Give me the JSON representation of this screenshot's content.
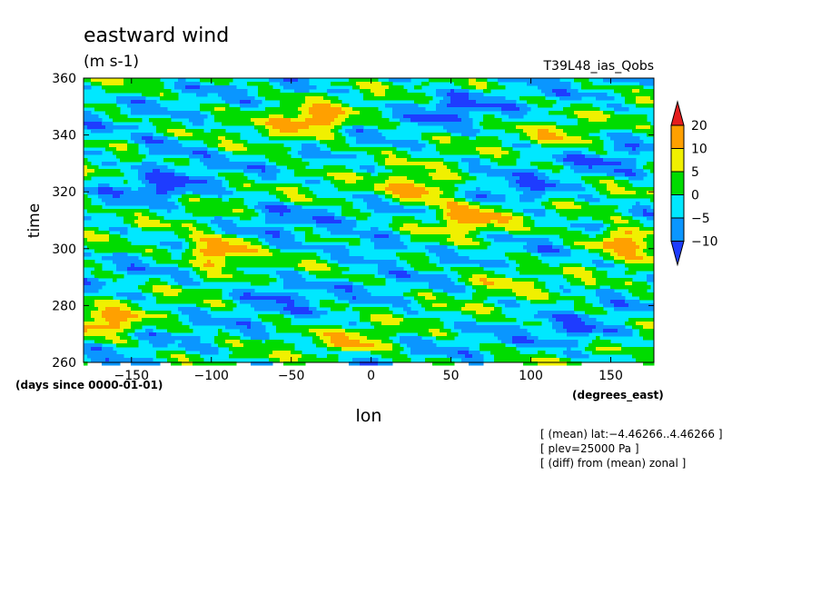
{
  "chart_data": {
    "type": "heatmap",
    "title": "eastward wind",
    "subtitle": "(m s-1)",
    "run_label": "T39L48_ias_Qobs",
    "xlabel": "lon",
    "x_units": "(degrees_east)",
    "ylabel": "time",
    "y_units": "(days since 0000-01-01)",
    "xlim": [
      -180,
      177
    ],
    "ylim": [
      260,
      360
    ],
    "x_ticks": [
      "−150",
      "−100",
      "−50",
      "0",
      "50",
      "100",
      "150"
    ],
    "y_ticks": [
      "260",
      "280",
      "300",
      "320",
      "340",
      "360"
    ],
    "colorbar": {
      "labels": [
        "20",
        "10",
        "5",
        "0",
        "−5",
        "−10"
      ],
      "levels": [
        -10,
        -5,
        0,
        5,
        10,
        20
      ],
      "colors": [
        "#1e3cff",
        "#0a96ff",
        "#00e8ff",
        "#00dc00",
        "#f0f000",
        "#ffa000",
        "#e61e1e"
      ]
    },
    "notes": [
      "[ (mean) lat:−4.46266..4.46266 ]",
      "[ plev=25000 Pa ]",
      "[ (diff) from (mean) zonal ]"
    ],
    "anomalies": [
      {
        "lon": -35,
        "time": 345,
        "value": 16
      },
      {
        "lon": -95,
        "time": 299,
        "value": 20
      },
      {
        "lon": 30,
        "time": 321,
        "value": 17
      },
      {
        "lon": 60,
        "time": 311,
        "value": 15
      },
      {
        "lon": 158,
        "time": 303,
        "value": 18
      },
      {
        "lon": -165,
        "time": 274,
        "value": 14
      },
      {
        "lon": -10,
        "time": 267,
        "value": 8
      },
      {
        "lon": -60,
        "time": 337,
        "value": 6
      },
      {
        "lon": 120,
        "time": 340,
        "value": 6
      },
      {
        "lon": 80,
        "time": 290,
        "value": 7
      },
      {
        "lon": -130,
        "time": 322,
        "value": -9
      },
      {
        "lon": -130,
        "time": 335,
        "value": -8
      },
      {
        "lon": 0,
        "time": 300,
        "value": -9
      },
      {
        "lon": 100,
        "time": 320,
        "value": -8
      },
      {
        "lon": -60,
        "time": 285,
        "value": -8
      },
      {
        "lon": 130,
        "time": 270,
        "value": -7
      },
      {
        "lon": -60,
        "time": 312,
        "value": -7
      },
      {
        "lon": 50,
        "time": 350,
        "value": -8
      },
      {
        "lon": 150,
        "time": 330,
        "value": -6
      }
    ]
  }
}
